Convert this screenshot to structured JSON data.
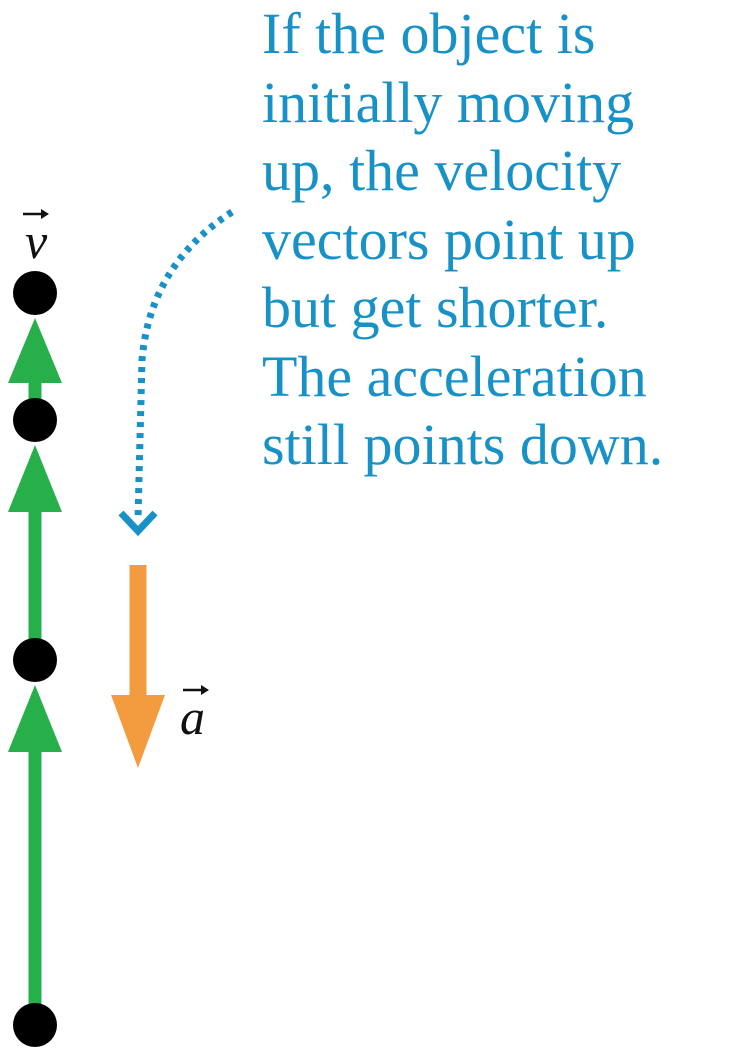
{
  "annotation": {
    "lines": [
      "If the object is",
      "initially moving",
      "up, the velocity",
      "vectors point up",
      "but get shorter.",
      "The acceleration",
      "still points down."
    ]
  },
  "labels": {
    "velocity_symbol": "v",
    "acceleration_symbol": "a"
  },
  "colors": {
    "annotation_text": "#1791c6",
    "dotted_arrow": "#1791c6",
    "velocity_vectors": "#27b04a",
    "acceleration_vector": "#f39c3f",
    "position_dots": "#000000",
    "symbols": "#111111"
  }
}
